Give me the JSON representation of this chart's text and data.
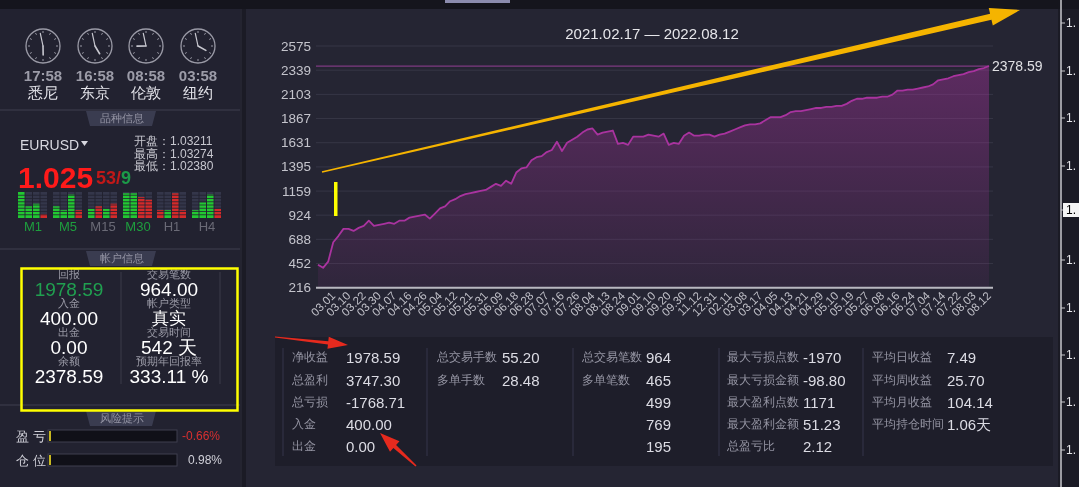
{
  "chart_data": [
    {
      "type": "other",
      "annotations": [
        "17:58",
        "16:58",
        "08:58",
        "03:58",
        "悉尼",
        "东京",
        "伦敦",
        "纽约",
        "品种信息",
        "EURUSD",
        "开盘：1.03211",
        "最高：1.03274",
        "最低：1.02380",
        "1.025",
        "53/9",
        "M1",
        "M5",
        "M15",
        "M30",
        "H1",
        "H4",
        "帐户信息",
        "回报",
        "1978.59",
        "入金",
        "400.00",
        "出金",
        "0.00",
        "余额",
        "2378.59",
        "交易笔数",
        "964.00",
        "帐户类型",
        "真实",
        "交易时间",
        "542 天",
        "预期年回报率",
        "333.11 %",
        "风险提示",
        "盈 亏",
        "-0.66%",
        "仓 位",
        "0.98%"
      ]
    },
    {
      "type": "area",
      "title": "2021.02.17 — 2022.08.12",
      "categories": [
        null,
        null,
        null,
        "03.01",
        null,
        null,
        "03.10",
        null,
        null,
        "03.22",
        null,
        null,
        "03.30",
        null,
        null,
        "04.07",
        null,
        null,
        "04.16",
        null,
        null,
        "04.26",
        null,
        null,
        "05.04",
        null,
        null,
        "05.12",
        null,
        null,
        "05.21",
        null,
        null,
        "05.31",
        null,
        null,
        "06.09",
        null,
        null,
        "06.18",
        null,
        null,
        "06.28",
        null,
        null,
        "07.07",
        null,
        null,
        "07.16",
        null,
        null,
        "07.26",
        null,
        null,
        "08.04",
        null,
        null,
        "08.13",
        null,
        null,
        "08.24",
        null,
        null,
        "09.01",
        null,
        null,
        "09.10",
        null,
        null,
        "09.20",
        null,
        null,
        "09.30",
        null,
        null,
        "11.12",
        null,
        null,
        "12.31",
        null,
        null,
        "02.11",
        null,
        null,
        "03.08",
        null,
        null,
        "03.17",
        null,
        null,
        "04.05",
        null,
        null,
        "04.13",
        null,
        null,
        "04.21",
        null,
        null,
        "04.29",
        null,
        null,
        "05.10",
        null,
        null,
        "05.19",
        null,
        null,
        "05.27",
        null,
        null,
        "06.08",
        null,
        null,
        "06.16",
        null,
        null,
        "06.24",
        null,
        null,
        "07.04",
        null,
        null,
        "07.14",
        null,
        null,
        "07.22",
        null,
        null,
        "08.03",
        null,
        null,
        "08.12"
      ],
      "values": [
        440,
        410,
        470,
        660,
        720,
        790,
        790,
        770,
        800,
        820,
        870,
        820,
        830,
        840,
        850,
        840,
        870,
        870,
        900,
        910,
        920,
        930,
        890,
        940,
        990,
        1010,
        1060,
        1080,
        1110,
        1130,
        1140,
        1150,
        1160,
        1170,
        1200,
        1230,
        1210,
        1260,
        1230,
        1340,
        1380,
        1390,
        1460,
        1490,
        1500,
        1540,
        1560,
        1640,
        1550,
        1630,
        1660,
        1690,
        1730,
        1760,
        1770,
        1710,
        1730,
        1740,
        1750,
        1620,
        1630,
        1610,
        1690,
        1690,
        1690,
        1710,
        1700,
        1690,
        1720,
        1610,
        1630,
        1620,
        1700,
        1730,
        1700,
        1700,
        1710,
        1710,
        1690,
        1710,
        1720,
        1740,
        1760,
        1780,
        1800,
        1810,
        1810,
        1820,
        1850,
        1880,
        1880,
        1880,
        1900,
        1930,
        1940,
        1940,
        1950,
        1960,
        1970,
        1970,
        1980,
        1980,
        1990,
        1990,
        2010,
        2040,
        2060,
        2060,
        2070,
        2070,
        2070,
        2080,
        2080,
        2100,
        2140,
        2140,
        2150,
        2150,
        2160,
        2170,
        2180,
        2200,
        2240,
        2250,
        2260,
        2280,
        2290,
        2300,
        2320,
        2330,
        2350,
        2360,
        2380
      ],
      "color": "#a9339f",
      "ylim": [
        216,
        2575
      ],
      "yticks": [
        216,
        452,
        688,
        924,
        1159,
        1395,
        1631,
        1867,
        2103,
        2339,
        2575
      ],
      "grid": "y",
      "ref_lines": [
        {
          "axis": "y",
          "value": 2378.59,
          "label": "2378.59",
          "color": "#7e3a82"
        }
      ]
    },
    {
      "type": "other",
      "annotations": [
        "净收益",
        "1978.59",
        "总盈利",
        "3747.30",
        "总亏损",
        "-1768.71",
        "入金",
        "400.00",
        "出金",
        "0.00",
        "总交易手数",
        "55.20",
        "多单手数",
        "28.48",
        "总交易笔数",
        "964",
        "多单笔数",
        "465",
        "499",
        "769",
        "195",
        "最大亏损点数",
        "-1970",
        "最大亏损金额",
        "-98.80",
        "最大盈利点数",
        "1171",
        "最大盈利金额",
        "51.23",
        "总盈亏比",
        "2.12",
        "平均日收益",
        "7.49",
        "平均周收益",
        "25.70",
        "平均月收益",
        "104.14",
        "平均持仓时间",
        "1.06天"
      ]
    },
    {
      "type": "other",
      "annotations": [
        "1.",
        "1.",
        "1.",
        "1.",
        "1.",
        "1.",
        "1.",
        "1.",
        "1.",
        "1."
      ]
    }
  ]
}
